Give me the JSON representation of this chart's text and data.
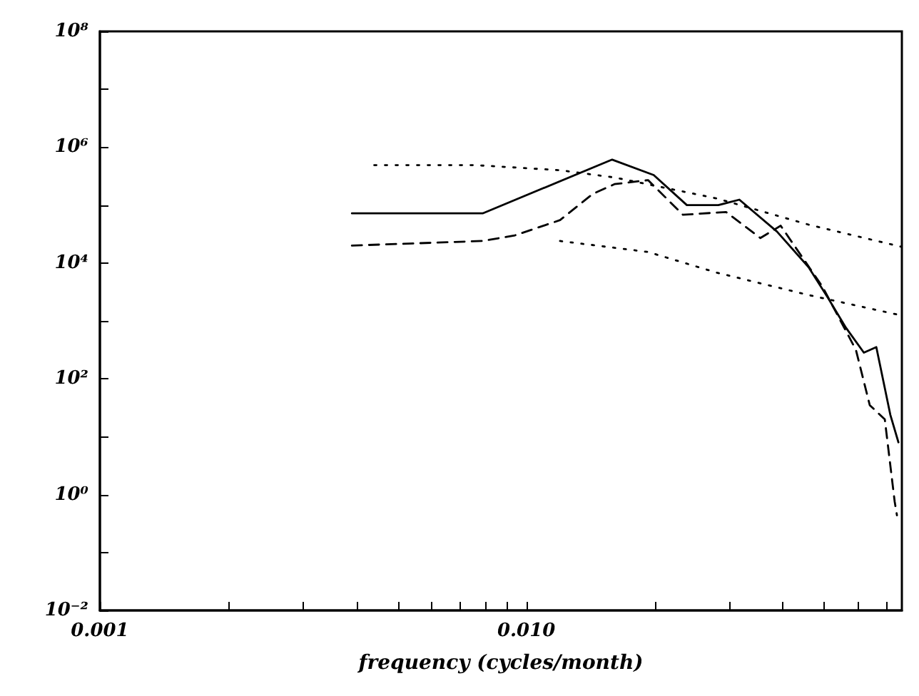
{
  "chart_data": {
    "type": "line",
    "xlabel": "frequency (cycles/month)",
    "log": "xy",
    "grid": false,
    "marker": "none",
    "xlim": [
      0.001,
      0.076
    ],
    "ylim": [
      0.01,
      100000000
    ],
    "xticks": [
      {
        "value": 0.001,
        "label": "0.001"
      },
      {
        "value": 0.002,
        "label": null
      },
      {
        "value": 0.003,
        "label": null
      },
      {
        "value": 0.004,
        "label": null
      },
      {
        "value": 0.005,
        "label": null
      },
      {
        "value": 0.006,
        "label": null
      },
      {
        "value": 0.007,
        "label": null
      },
      {
        "value": 0.008,
        "label": null
      },
      {
        "value": 0.009,
        "label": null
      },
      {
        "value": 0.01,
        "label": "0.010"
      },
      {
        "value": 0.02,
        "label": null
      },
      {
        "value": 0.03,
        "label": null
      },
      {
        "value": 0.04,
        "label": null
      },
      {
        "value": 0.05,
        "label": null
      },
      {
        "value": 0.06,
        "label": null
      },
      {
        "value": 0.07,
        "label": null
      }
    ],
    "yticks": [
      {
        "value": 0.01,
        "label": "10⁻²"
      },
      {
        "value": 0.1,
        "label": null
      },
      {
        "value": 1,
        "label": "10⁰"
      },
      {
        "value": 10,
        "label": null
      },
      {
        "value": 100,
        "label": "10²"
      },
      {
        "value": 1000,
        "label": null
      },
      {
        "value": 10000,
        "label": "10⁴"
      },
      {
        "value": 100000,
        "label": null
      },
      {
        "value": 1000000,
        "label": "10⁶"
      },
      {
        "value": 10000000,
        "label": null
      },
      {
        "value": 100000000,
        "label": "10⁸"
      }
    ],
    "series": [
      {
        "color": "#000000",
        "line_style": "solid",
        "x": [
          0.0039,
          0.0079,
          0.0159,
          0.0199,
          0.0238,
          0.0282,
          0.0316,
          0.0387,
          0.0459,
          0.051,
          0.0562,
          0.0619,
          0.0662,
          0.0714,
          0.0746
        ],
        "values": [
          72000,
          72000,
          610000,
          330000,
          100000,
          100000,
          124000,
          35000,
          8500,
          2500,
          760,
          283,
          353,
          24,
          8
        ]
      },
      {
        "color": "#000000",
        "line_style": "dashed",
        "x": [
          0.0039,
          0.0079,
          0.0094,
          0.012,
          0.0143,
          0.0161,
          0.0193,
          0.0233,
          0.0294,
          0.0354,
          0.0395,
          0.0495,
          0.0593,
          0.0639,
          0.0693,
          0.0731,
          0.074
        ],
        "values": [
          20000,
          24000,
          30000,
          55000,
          155000,
          230000,
          270000,
          68000,
          76000,
          27000,
          44000,
          3900,
          316,
          35,
          20,
          0.76,
          0.44
        ]
      },
      {
        "color": "#000000",
        "line_style": "dotted",
        "x": [
          0.0044,
          0.0076,
          0.012,
          0.0161,
          0.028,
          0.0459,
          0.0759
        ],
        "values": [
          490000,
          490000,
          400000,
          300000,
          130000,
          46000,
          19000
        ]
      },
      {
        "color": "#000000",
        "line_style": "dotted",
        "x": [
          0.012,
          0.0193,
          0.028,
          0.0459,
          0.0759
        ],
        "values": [
          24000,
          15500,
          6800,
          2800,
          1240
        ]
      }
    ]
  }
}
